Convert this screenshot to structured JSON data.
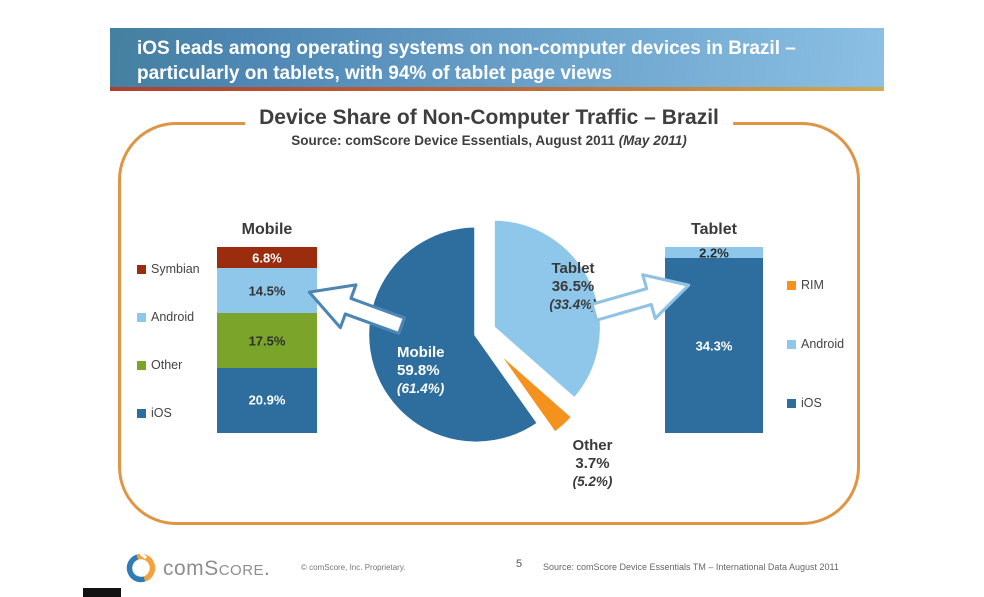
{
  "header": {
    "title": "iOS leads among operating systems on non-computer devices in Brazil – particularly on tablets, with 94% of tablet page views"
  },
  "chart_data": [
    {
      "type": "pie",
      "title": "Device Share of Non-Computer Traffic – Brazil",
      "subtitle": "Source: comScore Device Essentials,  August 2011",
      "subtitle_note": "(May 2011)",
      "slices": [
        {
          "label": "Tablet",
          "value": 36.5,
          "value_display": "36.5%",
          "prior_display": "(33.4%)",
          "color": "#8EC7EA"
        },
        {
          "label": "Other",
          "value": 3.7,
          "value_display": "3.7%",
          "prior_display": "(5.2%)",
          "color": "#F5921E"
        },
        {
          "label": "Mobile",
          "value": 59.8,
          "value_display": "59.8%",
          "prior_display": "(61.4%)",
          "color": "#2E6E9F"
        }
      ]
    },
    {
      "type": "bar",
      "stacked": true,
      "title": "Mobile",
      "segments": [
        {
          "label": "Symbian",
          "value": 6.8,
          "value_display": "6.8%",
          "color": "#9B2D0E",
          "text_color": "#FFFFFF"
        },
        {
          "label": "Android",
          "value": 14.5,
          "value_display": "14.5%",
          "color": "#8EC7EA",
          "text_color": "#333333"
        },
        {
          "label": "Other",
          "value": 17.5,
          "value_display": "17.5%",
          "color": "#7AA42A",
          "text_color": "#2F2F2F"
        },
        {
          "label": "iOS",
          "value": 20.9,
          "value_display": "20.9%",
          "color": "#2E6E9F",
          "text_color": "#FFFFFF"
        }
      ],
      "legend": {
        "items": [
          {
            "label": "Symbian",
            "color": "#9B2D0E"
          },
          {
            "label": "Android",
            "color": "#8EC7EA"
          },
          {
            "label": "Other",
            "color": "#7AA42A"
          },
          {
            "label": "iOS",
            "color": "#2E6E9F"
          }
        ]
      }
    },
    {
      "type": "bar",
      "stacked": true,
      "title": "Tablet",
      "segments": [
        {
          "label": "Android",
          "value": 2.2,
          "value_display": "2.2%",
          "color": "#8EC7EA",
          "text_color": "#2B2B2B"
        },
        {
          "label": "iOS",
          "value": 34.3,
          "value_display": "34.3%",
          "color": "#2E6E9F",
          "text_color": "#FFFFFF"
        }
      ],
      "legend": {
        "items": [
          {
            "label": "RIM",
            "color": "#F5921E"
          },
          {
            "label": "Android",
            "color": "#8EC7EA"
          },
          {
            "label": "iOS",
            "color": "#2E6E9F"
          }
        ]
      }
    }
  ],
  "footer": {
    "brand_left": "com",
    "brand_right": "Score.",
    "copyright": "© comScore, Inc.   Proprietary.",
    "page_number": "5",
    "source": "Source: comScore Device Essentials TM – International Data August 2011"
  },
  "colors": {
    "dark_blue": "#2E6E9F",
    "light_blue": "#8EC7EA",
    "green": "#7AA42A",
    "brick_red": "#9B2D0E",
    "orange": "#F5921E",
    "panel_border": "#E09544",
    "header_blue_left": "#44809F",
    "header_blue_right": "#8CC0E4"
  }
}
